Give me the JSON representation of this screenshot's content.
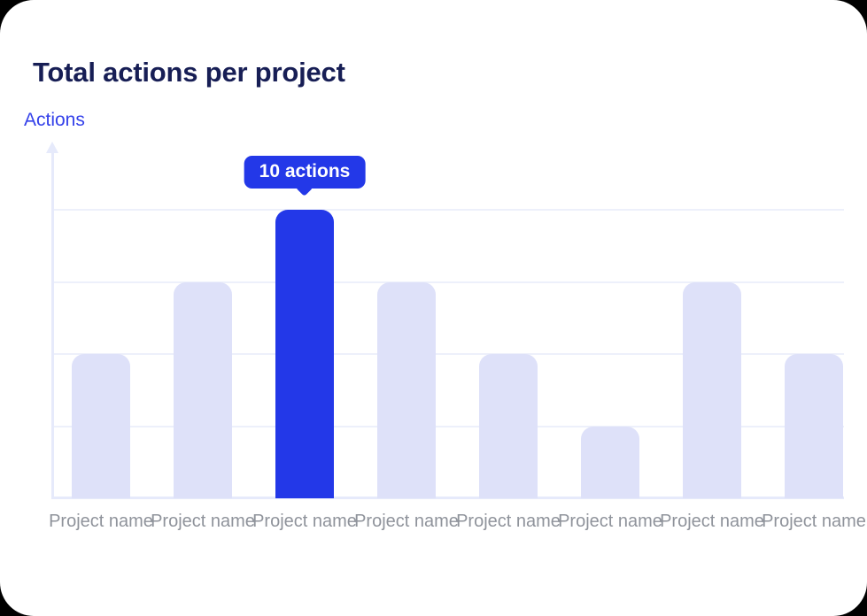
{
  "header": {
    "title": "Total actions per project"
  },
  "chart_data": {
    "type": "bar",
    "title": "Total actions per project",
    "ylabel": "Actions",
    "xlabel": "",
    "categories": [
      "Project name",
      "Project name",
      "Project name",
      "Project name",
      "Project name",
      "Project name",
      "Project name",
      "Project name"
    ],
    "values": [
      5,
      7.5,
      10,
      7.5,
      5,
      2.5,
      7.5,
      5
    ],
    "value_unit": "actions",
    "ylim": [
      0,
      10
    ],
    "gridline_interval": 2.5,
    "tick_labels_visible": false,
    "grid": true,
    "highlighted_index": 2,
    "tooltip": {
      "label": "10 actions",
      "value": 10
    },
    "colors": {
      "bar": "#dee1f9",
      "highlight": "#2338e8",
      "grid": "#edf0fb",
      "axis": "#e6eafb",
      "category_label": "#8f939b",
      "ylabel": "#3441ea",
      "title": "#171e55",
      "tooltip_bg": "#2338e8",
      "tooltip_text": "#ffffff"
    }
  }
}
